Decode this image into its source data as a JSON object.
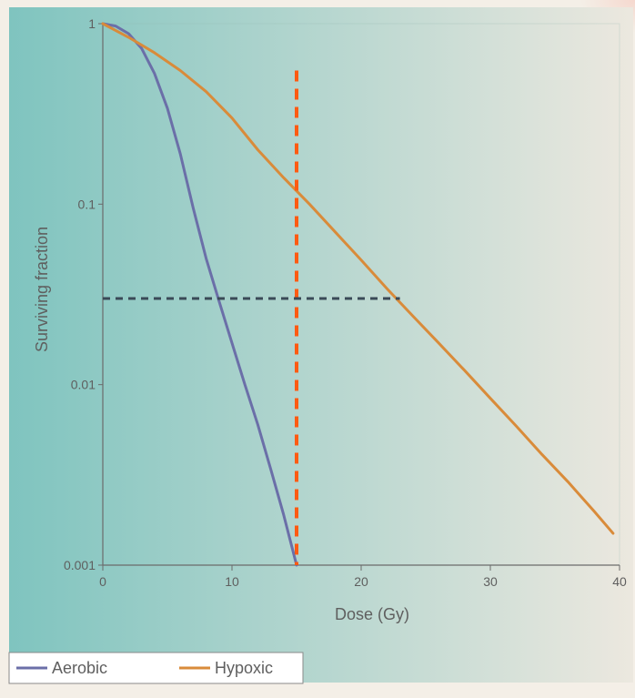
{
  "chart_data": {
    "type": "line",
    "xlabel": "Dose (Gy)",
    "ylabel": "Surviving fraction",
    "xlim": [
      0,
      40
    ],
    "ylim": [
      0.001,
      1
    ],
    "y_scale": "log",
    "x_ticks": [
      0,
      10,
      20,
      30,
      40
    ],
    "x_tick_labels": [
      "0",
      "10",
      "20",
      "30",
      "40"
    ],
    "y_ticks": [
      0.001,
      0.01,
      0.1,
      1
    ],
    "y_tick_labels": [
      "0.001",
      "0.01",
      "0.1",
      "1"
    ],
    "legend_position": "bottom-left",
    "series": [
      {
        "name": "Aerobic",
        "color": "#6b6fa8",
        "points": [
          [
            0,
            1
          ],
          [
            1,
            0.97
          ],
          [
            2,
            0.88
          ],
          [
            3,
            0.73
          ],
          [
            4,
            0.53
          ],
          [
            5,
            0.34
          ],
          [
            6,
            0.19
          ],
          [
            7,
            0.095
          ],
          [
            8,
            0.05
          ],
          [
            9,
            0.029
          ],
          [
            10,
            0.017
          ],
          [
            11,
            0.01
          ],
          [
            12,
            0.006
          ],
          [
            13,
            0.0034
          ],
          [
            14,
            0.0019
          ],
          [
            15,
            0.001
          ]
        ]
      },
      {
        "name": "Hypoxic",
        "color": "#d98b3a",
        "points": [
          [
            0,
            1
          ],
          [
            2,
            0.84
          ],
          [
            4,
            0.69
          ],
          [
            6,
            0.55
          ],
          [
            8,
            0.42
          ],
          [
            10,
            0.3
          ],
          [
            12,
            0.2
          ],
          [
            14,
            0.14
          ],
          [
            16,
            0.1
          ],
          [
            18,
            0.07
          ],
          [
            20,
            0.049
          ],
          [
            22,
            0.034
          ],
          [
            24,
            0.024
          ],
          [
            26,
            0.017
          ],
          [
            28,
            0.012
          ],
          [
            30,
            0.0084
          ],
          [
            32,
            0.0059
          ],
          [
            34,
            0.0041
          ],
          [
            36,
            0.0029
          ],
          [
            38,
            0.002
          ],
          [
            39.5,
            0.0015
          ]
        ]
      }
    ],
    "annotations": [
      {
        "type": "vertical-dashed-line",
        "x": 15,
        "y_range": [
          0.001,
          0.55
        ],
        "color": "#ff5a12"
      },
      {
        "type": "horizontal-dashed-line",
        "y": 0.03,
        "x_range": [
          0,
          23
        ],
        "color": "#3a4a57"
      }
    ],
    "background_gradient": {
      "left_color": "#7fc4bf",
      "right_color": "#ece8df"
    }
  }
}
